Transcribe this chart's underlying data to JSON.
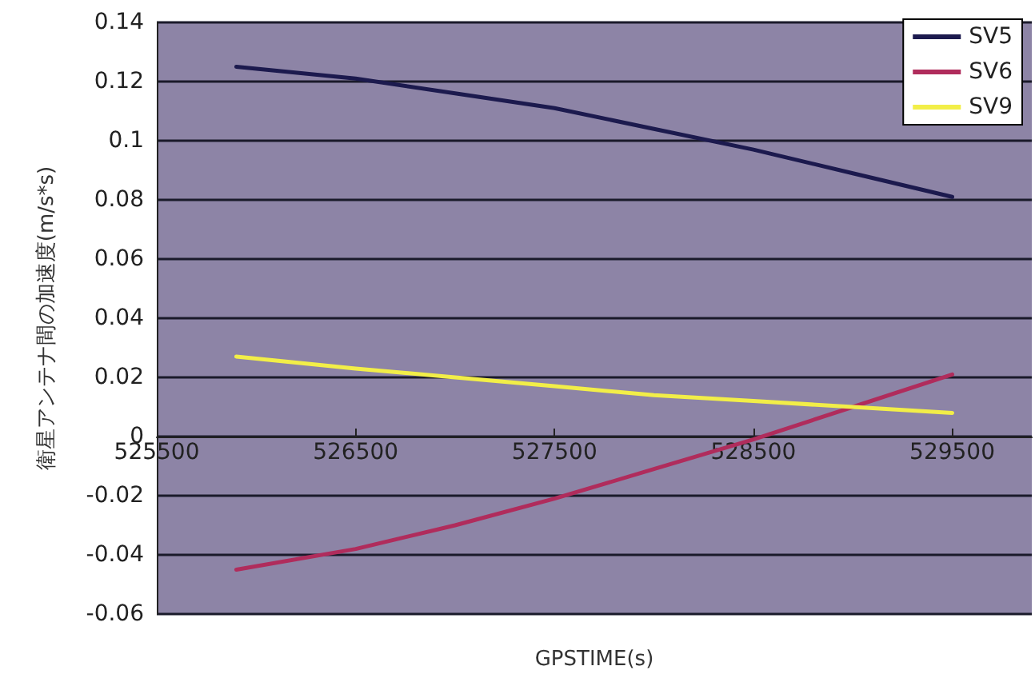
{
  "chart_data": {
    "type": "line",
    "xlabel": "GPSTIME(s)",
    "ylabel": "衛星アンテナ間の加速度(m/s*s)",
    "x": [
      525900,
      526500,
      527000,
      527500,
      528000,
      528500,
      529000,
      529500
    ],
    "series": [
      {
        "name": "SV5",
        "color": "#1c1a4e",
        "values": [
          0.125,
          0.121,
          0.116,
          0.111,
          0.104,
          0.097,
          0.089,
          0.081
        ]
      },
      {
        "name": "SV6",
        "color": "#b02c5c",
        "values": [
          -0.045,
          -0.038,
          -0.03,
          -0.021,
          -0.011,
          -0.001,
          0.01,
          0.021
        ]
      },
      {
        "name": "SV9",
        "color": "#f2ee48",
        "values": [
          0.027,
          0.023,
          0.02,
          0.017,
          0.014,
          0.012,
          0.01,
          0.008
        ]
      }
    ],
    "xlim": [
      525500,
      529900
    ],
    "xticks": [
      525500,
      526500,
      527500,
      528500,
      529500
    ],
    "ylim": [
      -0.06,
      0.14
    ],
    "yticks": [
      -0.06,
      -0.04,
      -0.02,
      0,
      0.02,
      0.04,
      0.06,
      0.08,
      0.1,
      0.12,
      0.14
    ],
    "grid": "y",
    "legend": "top right",
    "marker": "none",
    "line_style": "solid"
  }
}
